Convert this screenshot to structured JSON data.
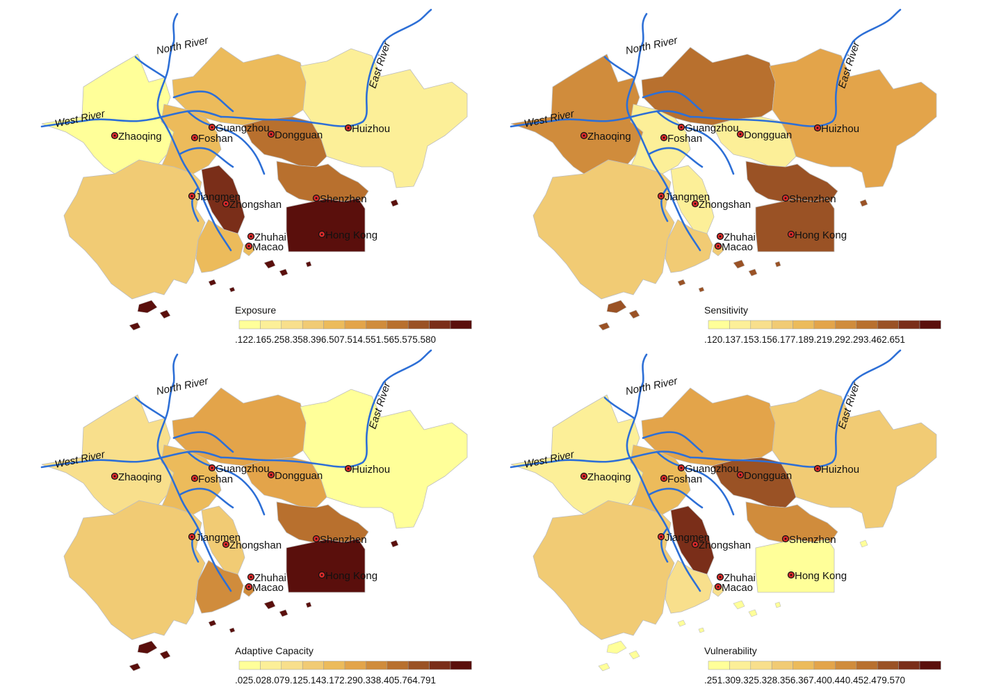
{
  "palette": [
    "#ffff99",
    "#fcef98",
    "#f8df8c",
    "#f1cb74",
    "#ecbb5b",
    "#e3a44a",
    "#d08c3c",
    "#b8702e",
    "#9a5225",
    "#7a2e19",
    "#5a0f0c"
  ],
  "water_color": "#2d6fd6",
  "rivers": {
    "north": "North River",
    "west": "West River",
    "east": "East River"
  },
  "cities": [
    {
      "id": "zhaoqing",
      "name": "Zhaoqing"
    },
    {
      "id": "guangzhou",
      "name": "Guangzhou"
    },
    {
      "id": "foshan",
      "name": "Foshan"
    },
    {
      "id": "dongguan",
      "name": "Dongguan"
    },
    {
      "id": "huizhou",
      "name": "Huizhou"
    },
    {
      "id": "jiangmen",
      "name": "Jiangmen"
    },
    {
      "id": "zhongshan",
      "name": "Zhongshan"
    },
    {
      "id": "shenzhen",
      "name": "Shenzhen"
    },
    {
      "id": "zhuhai",
      "name": "Zhuhai"
    },
    {
      "id": "macao",
      "name": "Macao"
    },
    {
      "id": "hongkong",
      "name": "Hong Kong"
    }
  ],
  "panels": [
    {
      "title": "Exposure",
      "breaks": [
        ".122",
        ".165",
        ".258",
        ".358",
        ".396",
        ".507",
        ".514",
        ".551",
        ".565",
        ".575",
        ".580"
      ],
      "classes": {
        "zhaoqing": 0,
        "guangzhou": 4,
        "foshan": 4,
        "dongguan": 7,
        "huizhou": 1,
        "jiangmen": 3,
        "zhongshan": 9,
        "shenzhen": 7,
        "zhuhai": 4,
        "macao": 4,
        "hongkong": 10
      }
    },
    {
      "title": "Sensitivity",
      "breaks": [
        ".120",
        ".137",
        ".153",
        ".156",
        ".177",
        ".189",
        ".219",
        ".292",
        ".293",
        ".462",
        ".651"
      ],
      "classes": {
        "zhaoqing": 6,
        "guangzhou": 7,
        "foshan": 1,
        "dongguan": 1,
        "huizhou": 5,
        "jiangmen": 3,
        "zhongshan": 1,
        "shenzhen": 8,
        "zhuhai": 3,
        "macao": 3,
        "hongkong": 8
      }
    },
    {
      "title": "Adaptive Capacity",
      "breaks": [
        ".025",
        ".028",
        ".079",
        ".125",
        ".143",
        ".172",
        ".290",
        ".338",
        ".405",
        ".764",
        ".791"
      ],
      "classes": {
        "zhaoqing": 2,
        "guangzhou": 5,
        "foshan": 4,
        "dongguan": 5,
        "huizhou": 0,
        "jiangmen": 3,
        "zhongshan": 3,
        "shenzhen": 7,
        "zhuhai": 6,
        "macao": 6,
        "hongkong": 10
      }
    },
    {
      "title": "Vulnerability",
      "breaks": [
        ".251",
        ".309",
        ".325",
        ".328",
        ".356",
        ".367",
        ".400",
        ".440",
        ".452",
        ".479",
        ".570"
      ],
      "classes": {
        "zhaoqing": 1,
        "guangzhou": 5,
        "foshan": 4,
        "dongguan": 8,
        "huizhou": 3,
        "jiangmen": 3,
        "zhongshan": 9,
        "shenzhen": 6,
        "zhuhai": 2,
        "macao": 2,
        "hongkong": 0
      }
    }
  ]
}
